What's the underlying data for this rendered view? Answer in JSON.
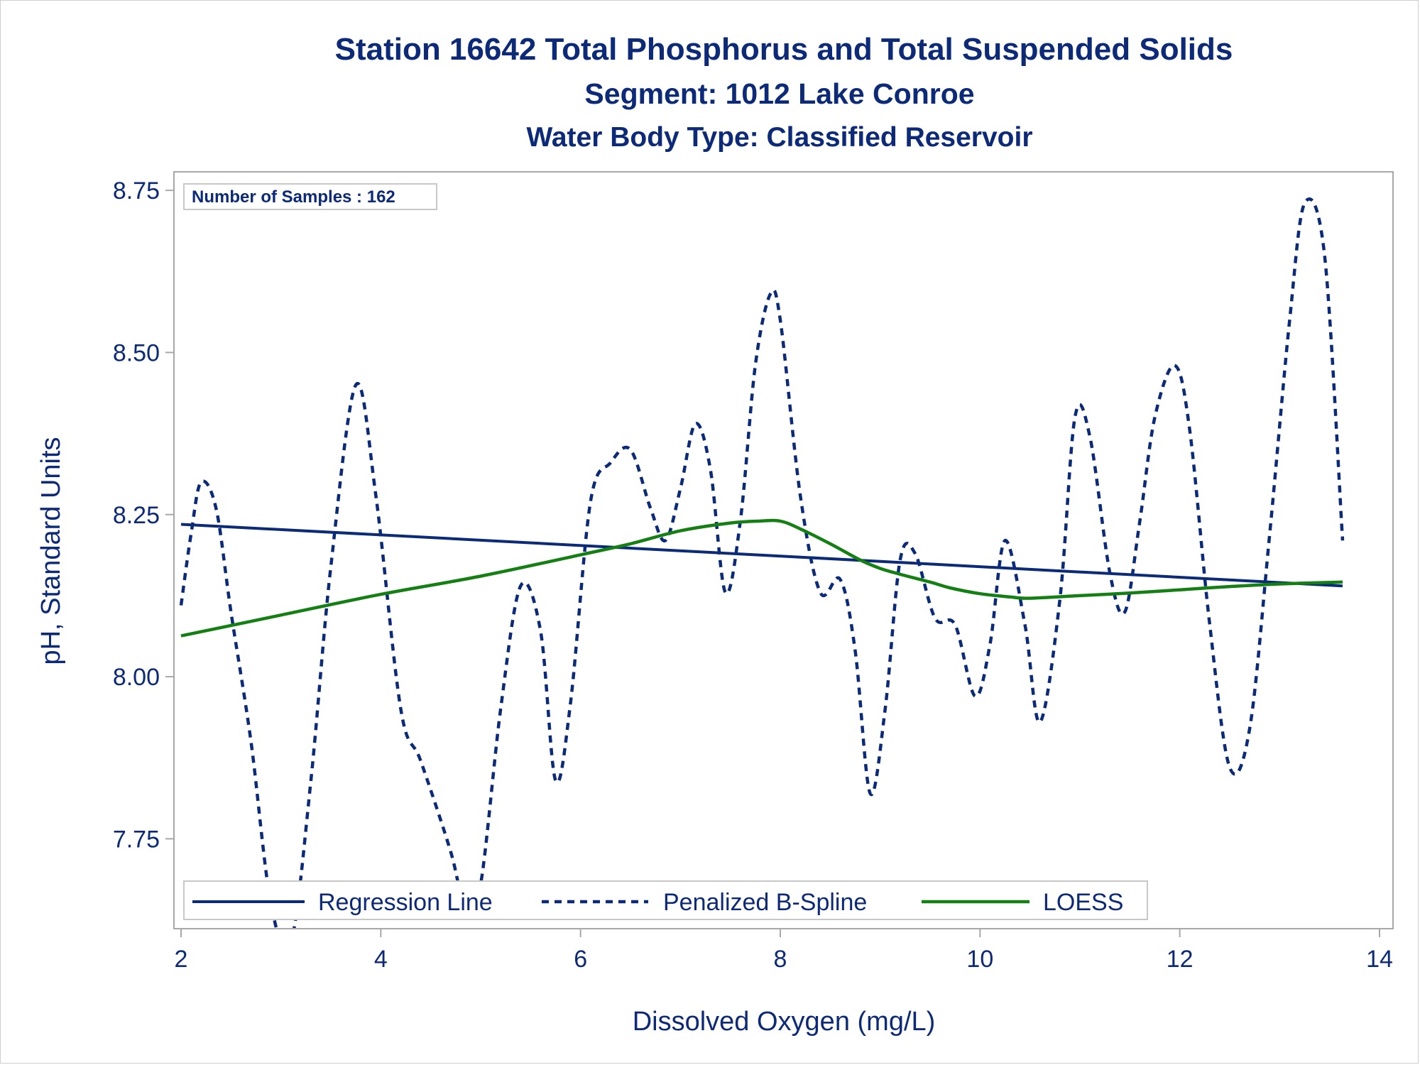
{
  "colors": {
    "text": "#0d2a78",
    "regression": "#0b2a78",
    "spline": "#0b2a78",
    "loess": "#148014",
    "frame": "#a8a8a8",
    "legend_border": "#c8c8c8"
  },
  "chart_data": {
    "type": "line",
    "title": "Station 16642  Total Phosphorus and Total Suspended Solids",
    "subtitle": "Segment: 1012  Lake Conroe",
    "subtitle2": "Water Body Type: Classified Reservoir",
    "xlabel": "Dissolved Oxygen (mg/L)",
    "ylabel": "pH, Standard Units",
    "xlim": [
      2,
      14
    ],
    "ylim": [
      7.63,
      8.76
    ],
    "xticks": [
      2,
      4,
      6,
      8,
      10,
      12,
      14
    ],
    "yticks": [
      7.75,
      8.0,
      8.25,
      8.5,
      8.75
    ],
    "yticklabels": [
      "7.75",
      "8.00",
      "8.25",
      "8.50",
      "8.75"
    ],
    "grid": false,
    "legend_placement": "bottom-left",
    "inset_label": "Number of Samples : 162",
    "series": [
      {
        "name": "Regression Line",
        "style": "solid",
        "x": [
          2.0,
          13.63
        ],
        "y": [
          8.235,
          8.14
        ]
      },
      {
        "name": "Penalized B-Spline",
        "style": "dashed",
        "x": [
          2.0,
          2.1,
          2.2,
          2.35,
          2.5,
          2.7,
          2.9,
          3.1,
          3.3,
          3.5,
          3.75,
          3.95,
          4.2,
          4.4,
          4.7,
          4.85,
          5.0,
          5.2,
          5.4,
          5.6,
          5.75,
          5.9,
          6.1,
          6.3,
          6.5,
          6.7,
          6.85,
          7.0,
          7.15,
          7.3,
          7.45,
          7.6,
          7.75,
          7.9,
          8.0,
          8.2,
          8.4,
          8.6,
          8.75,
          8.9,
          9.05,
          9.2,
          9.35,
          9.55,
          9.75,
          9.95,
          10.1,
          10.25,
          10.45,
          10.6,
          10.8,
          10.95,
          11.1,
          11.3,
          11.45,
          11.6,
          11.75,
          11.95,
          12.1,
          12.3,
          12.5,
          12.7,
          12.9,
          13.1,
          13.25,
          13.45,
          13.63
        ],
        "y": [
          8.11,
          8.22,
          8.3,
          8.26,
          8.1,
          7.9,
          7.65,
          7.59,
          7.84,
          8.17,
          8.45,
          8.28,
          7.95,
          7.87,
          7.73,
          7.64,
          7.68,
          7.95,
          8.14,
          8.07,
          7.84,
          7.96,
          8.27,
          8.33,
          8.35,
          8.26,
          8.21,
          8.29,
          8.39,
          8.32,
          8.13,
          8.24,
          8.48,
          8.59,
          8.55,
          8.28,
          8.13,
          8.15,
          8.04,
          7.82,
          7.95,
          8.18,
          8.19,
          8.09,
          8.08,
          7.97,
          8.05,
          8.21,
          8.08,
          7.93,
          8.12,
          8.4,
          8.37,
          8.16,
          8.1,
          8.24,
          8.4,
          8.48,
          8.38,
          8.08,
          7.86,
          7.92,
          8.22,
          8.55,
          8.73,
          8.65,
          8.21
        ]
      },
      {
        "name": "LOESS",
        "style": "solid",
        "x": [
          2.0,
          3.0,
          4.0,
          5.0,
          6.0,
          6.5,
          7.0,
          7.5,
          7.8,
          8.0,
          8.2,
          8.5,
          8.8,
          9.0,
          9.2,
          9.5,
          9.7,
          10.0,
          10.3,
          10.5,
          11.0,
          11.5,
          12.0,
          12.5,
          13.0,
          13.63
        ],
        "y": [
          8.063,
          8.095,
          8.127,
          8.155,
          8.188,
          8.205,
          8.225,
          8.237,
          8.24,
          8.24,
          8.228,
          8.205,
          8.18,
          8.167,
          8.158,
          8.146,
          8.137,
          8.128,
          8.123,
          8.121,
          8.125,
          8.129,
          8.134,
          8.139,
          8.143,
          8.146
        ]
      }
    ]
  }
}
